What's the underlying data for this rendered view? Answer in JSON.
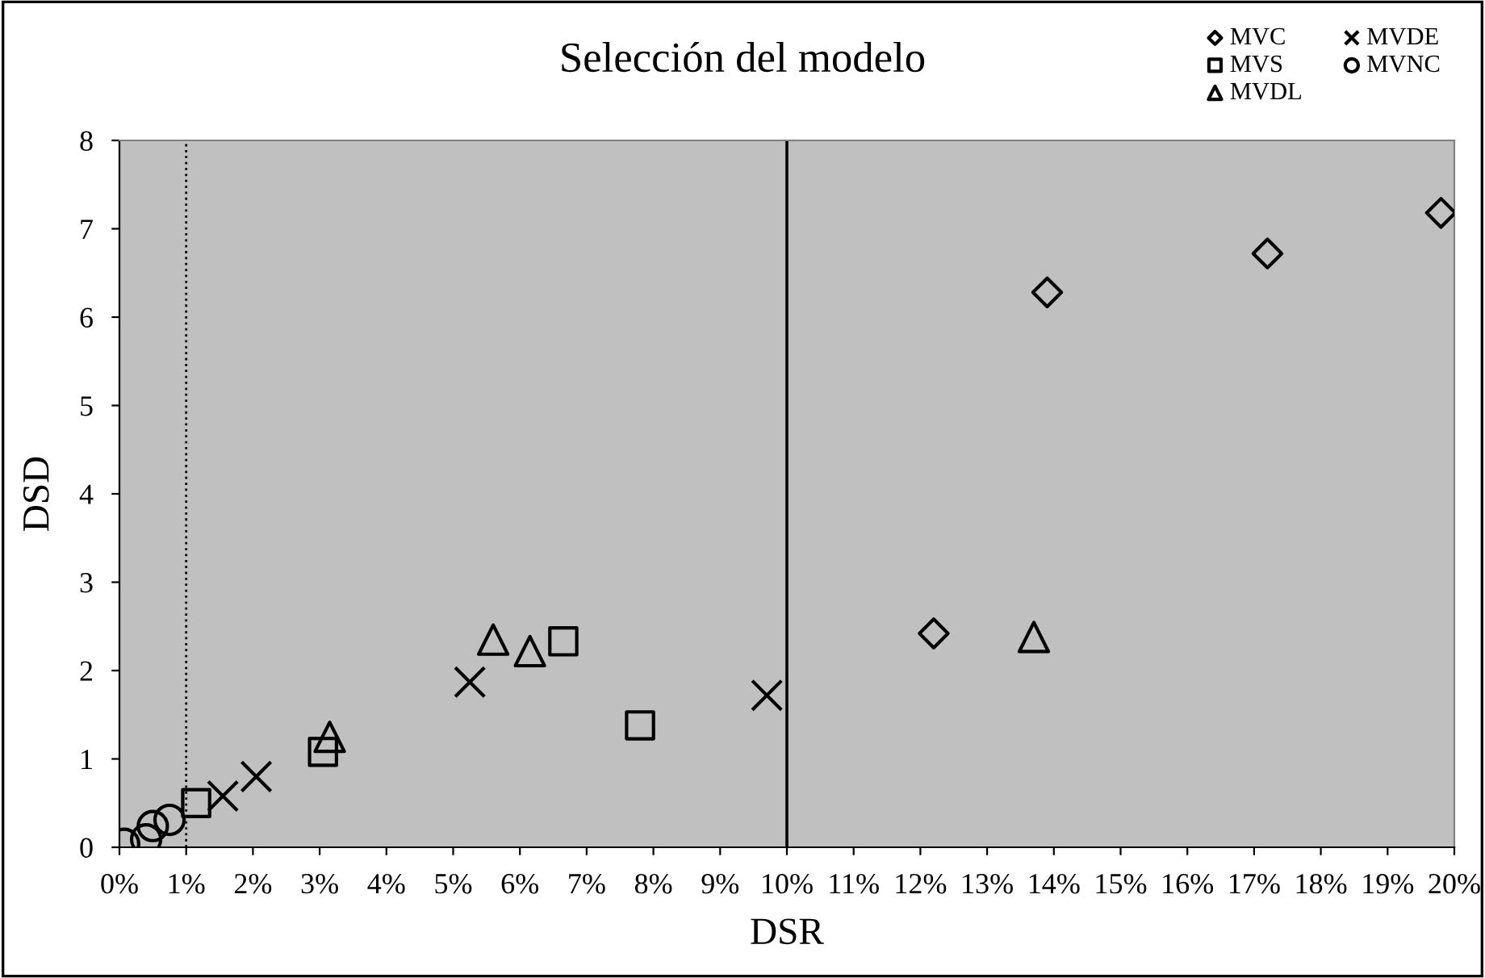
{
  "chart_data": {
    "type": "scatter",
    "title": "Selección del modelo",
    "xlabel": "DSR",
    "ylabel": "DSD",
    "series": [
      {
        "name": "MVC",
        "color": "#000000",
        "marker": "diamond",
        "x": [
          12.2,
          13.9,
          17.2,
          19.8
        ],
        "values": [
          2.42,
          6.28,
          6.72,
          7.18
        ]
      },
      {
        "name": "MVS",
        "color": "#000000",
        "marker": "square",
        "x": [
          1.15,
          3.05,
          6.65,
          7.8
        ],
        "values": [
          0.5,
          1.08,
          2.33,
          1.38
        ]
      },
      {
        "name": "MVDL",
        "color": "#000000",
        "marker": "triangle",
        "x": [
          3.15,
          5.6,
          6.15,
          13.7
        ],
        "values": [
          1.25,
          2.35,
          2.22,
          2.38
        ]
      },
      {
        "name": "MVDE",
        "color": "#000000",
        "marker": "cross",
        "x": [
          1.55,
          2.05,
          5.25,
          9.7
        ],
        "values": [
          0.58,
          0.8,
          1.87,
          1.72
        ]
      },
      {
        "name": "MVNC",
        "color": "#000000",
        "marker": "circle",
        "x": [
          0.07,
          0.4,
          0.5,
          0.75
        ],
        "values": [
          0.04,
          0.09,
          0.24,
          0.31
        ]
      }
    ],
    "xlim": [
      0,
      20
    ],
    "xticks": [
      {
        "value": 0,
        "label": "0%"
      },
      {
        "value": 1,
        "label": "1%"
      },
      {
        "value": 2,
        "label": "2%"
      },
      {
        "value": 3,
        "label": "3%"
      },
      {
        "value": 4,
        "label": "4%"
      },
      {
        "value": 5,
        "label": "5%"
      },
      {
        "value": 6,
        "label": "6%"
      },
      {
        "value": 7,
        "label": "7%"
      },
      {
        "value": 8,
        "label": "8%"
      },
      {
        "value": 9,
        "label": "9%"
      },
      {
        "value": 10,
        "label": "10%"
      },
      {
        "value": 11,
        "label": "11%"
      },
      {
        "value": 12,
        "label": "12%"
      },
      {
        "value": 13,
        "label": "13%"
      },
      {
        "value": 14,
        "label": "14%"
      },
      {
        "value": 15,
        "label": "15%"
      },
      {
        "value": 16,
        "label": "16%"
      },
      {
        "value": 17,
        "label": "17%"
      },
      {
        "value": 18,
        "label": "18%"
      },
      {
        "value": 19,
        "label": "19%"
      },
      {
        "value": 20,
        "label": "20%"
      }
    ],
    "ylim": [
      0,
      8
    ],
    "yticks": [
      0,
      1,
      2,
      3,
      4,
      5,
      6,
      7,
      8
    ],
    "ref_lines": [
      {
        "axis": "x",
        "value": 1,
        "color": "#000000",
        "line_style": "dotted"
      },
      {
        "axis": "x",
        "value": 10,
        "color": "#000000",
        "line_style": "solid"
      }
    ],
    "grid": false,
    "legend": "top right"
  }
}
